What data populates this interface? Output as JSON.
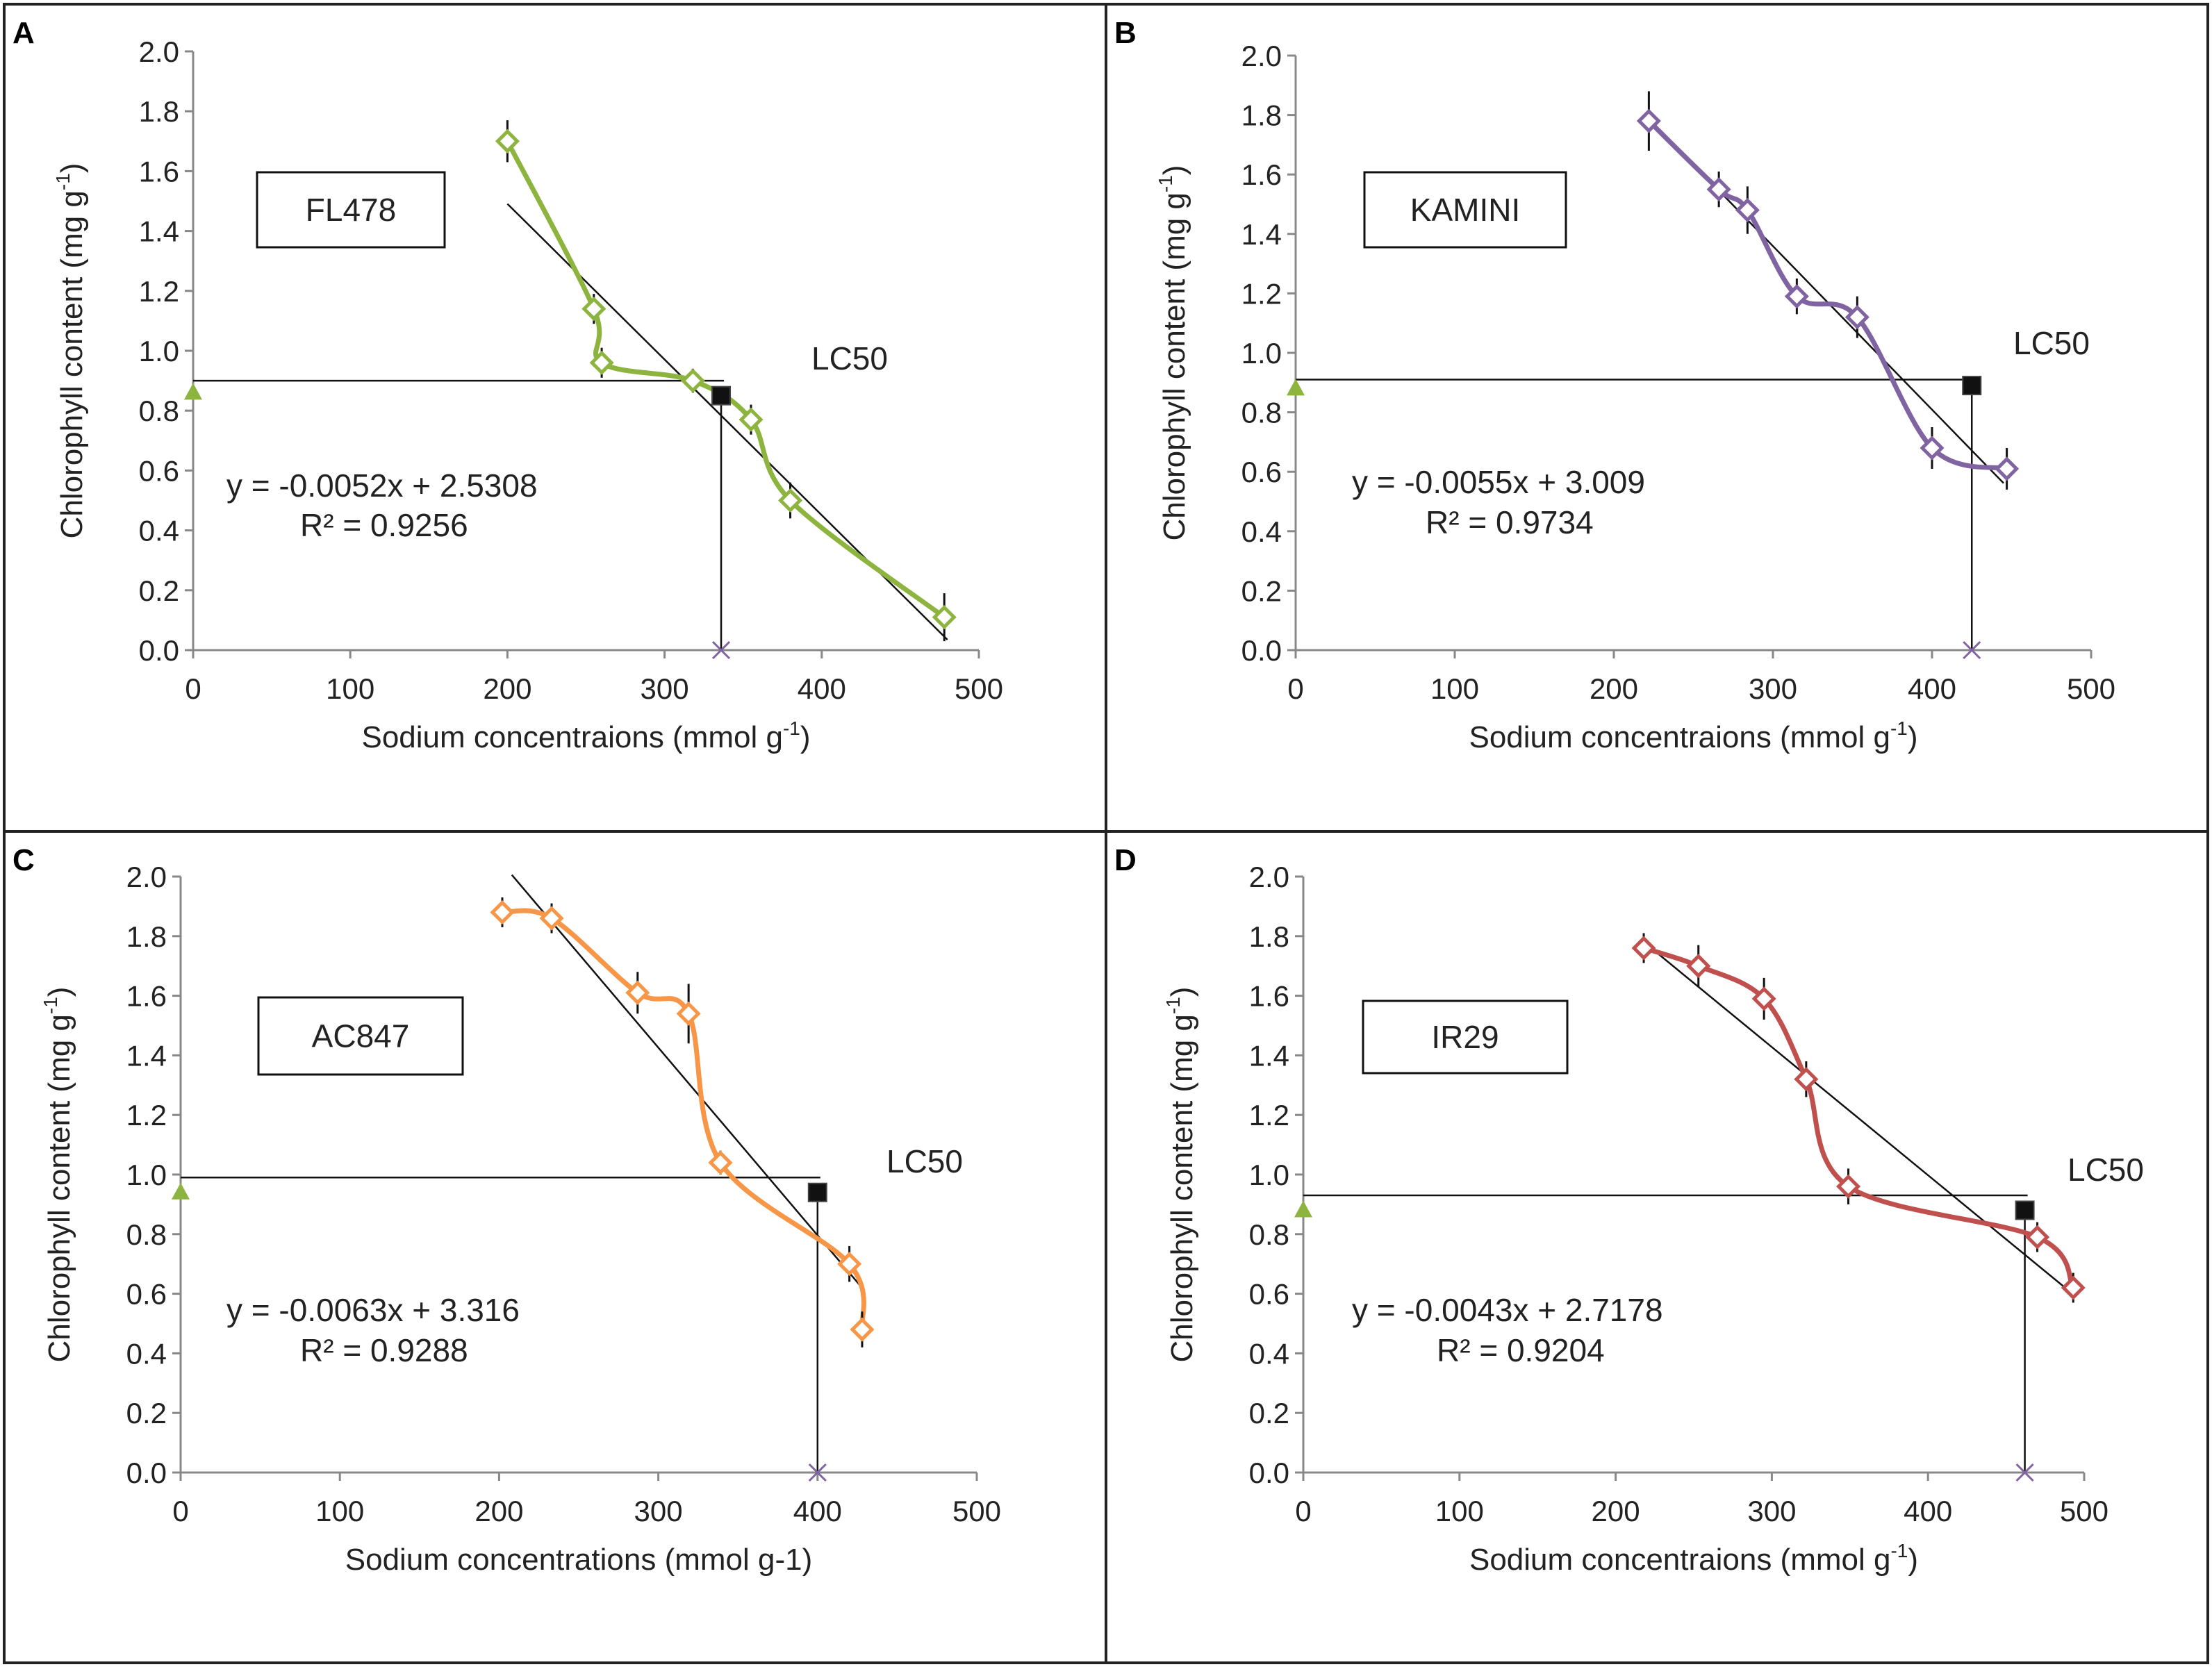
{
  "chart_data": [
    {
      "panel_label": "A",
      "type": "line",
      "cultivar": "FL478",
      "xlabel": "Sodium concentraions (mmol g",
      "xlabel_sup": "-1",
      "xlabel_end": ")",
      "ylabel": "Chlorophyll content (mg g",
      "ylabel_sup": "-1",
      "ylabel_end": ")",
      "xlim": [
        0,
        500
      ],
      "ylim": [
        0,
        2
      ],
      "xticks": [
        "0",
        "100",
        "200",
        "300",
        "400",
        "500"
      ],
      "yticks": [
        "0.0",
        "0.2",
        "0.4",
        "0.6",
        "0.8",
        "1.0",
        "1.2",
        "1.4",
        "1.6",
        "1.8",
        "2.0"
      ],
      "series_color": "#8DB43E",
      "x": [
        200,
        255,
        260,
        318,
        355,
        380,
        478
      ],
      "y": [
        1.7,
        1.14,
        0.96,
        0.9,
        0.77,
        0.5,
        0.11
      ],
      "err": [
        0.07,
        0.05,
        0.05,
        0.04,
        0.05,
        0.06,
        0.08
      ],
      "trend_x": [
        200,
        480
      ],
      "equation": "y = -0.0052x + 2.5308",
      "r2": "R² = 0.9256",
      "lc50_label": "LC50",
      "lc50_x": 336,
      "lc50_y": 0.85,
      "lc50_line_y": 0.9,
      "axis_marker_y": 0.86
    },
    {
      "panel_label": "B",
      "type": "line",
      "cultivar": "KAMINI",
      "xlabel": "Sodium concentraions (mmol g",
      "xlabel_sup": "-1",
      "xlabel_end": ")",
      "ylabel": "Chlorophyll content (mg g",
      "ylabel_sup": "-1",
      "ylabel_end": ")",
      "xlim": [
        0,
        500
      ],
      "ylim": [
        0,
        2
      ],
      "xticks": [
        "0",
        "100",
        "200",
        "300",
        "400",
        "500"
      ],
      "yticks": [
        "0.0",
        "0.2",
        "0.4",
        "0.6",
        "0.8",
        "1.0",
        "1.2",
        "1.4",
        "1.6",
        "1.8",
        "2.0"
      ],
      "series_color": "#8064A2",
      "x": [
        222,
        266,
        284,
        315,
        353,
        400,
        447
      ],
      "y": [
        1.78,
        1.55,
        1.48,
        1.19,
        1.12,
        0.68,
        0.61
      ],
      "err": [
        0.1,
        0.06,
        0.08,
        0.06,
        0.07,
        0.07,
        0.07
      ],
      "trend_x": [
        220,
        445
      ],
      "equation": "y = -0.0055x + 3.009",
      "r2": "R² = 0.9734",
      "lc50_label": "LC50",
      "lc50_x": 425,
      "lc50_y": 0.89,
      "lc50_line_y": 0.91,
      "axis_marker_y": 0.88
    },
    {
      "panel_label": "C",
      "type": "line",
      "cultivar": "AC847",
      "xlabel": "Sodium concentrations",
      "xlabel_sup": "",
      "xlabel_end": " (mmol g-1)",
      "ylabel": "Chlorophyll content (mg g",
      "ylabel_sup": "-1",
      "ylabel_end": ")",
      "xlim": [
        0,
        500
      ],
      "ylim": [
        0,
        2
      ],
      "xticks": [
        "0",
        "100",
        "200",
        "300",
        "400",
        "500"
      ],
      "yticks": [
        "0.0",
        "0.2",
        "0.4",
        "0.6",
        "0.8",
        "1.0",
        "1.2",
        "1.4",
        "1.6",
        "1.8",
        "2.0"
      ],
      "series_color": "#F79646",
      "x": [
        202,
        233,
        287,
        319,
        339,
        420,
        428
      ],
      "y": [
        1.88,
        1.86,
        1.61,
        1.54,
        1.04,
        0.7,
        0.48
      ],
      "err": [
        0.05,
        0.05,
        0.07,
        0.1,
        0.04,
        0.06,
        0.06
      ],
      "trend_x": [
        208,
        428
      ],
      "equation": "y = -0.0063x + 3.316",
      "r2": "R² = 0.9288",
      "lc50_label": "LC50",
      "lc50_x": 400,
      "lc50_y": 0.94,
      "lc50_line_y": 0.99,
      "axis_marker_y": 0.94
    },
    {
      "panel_label": "D",
      "type": "line",
      "cultivar": "IR29",
      "xlabel": "Sodium concentraions (mmol g",
      "xlabel_sup": "-1",
      "xlabel_end": ")",
      "ylabel": "Chlorophyll content (mg g",
      "ylabel_sup": "-1",
      "ylabel_end": ")",
      "xlim": [
        0,
        500
      ],
      "ylim": [
        0,
        2
      ],
      "xticks": [
        "0",
        "100",
        "200",
        "300",
        "400",
        "500"
      ],
      "yticks": [
        "0.0",
        "0.2",
        "0.4",
        "0.6",
        "0.8",
        "1.0",
        "1.2",
        "1.4",
        "1.6",
        "1.8",
        "2.0"
      ],
      "series_color": "#C0504D",
      "x": [
        218,
        253,
        295,
        322,
        349,
        470,
        493
      ],
      "y": [
        1.76,
        1.7,
        1.59,
        1.32,
        0.96,
        0.79,
        0.62
      ],
      "err": [
        0.05,
        0.07,
        0.07,
        0.06,
        0.06,
        0.05,
        0.05
      ],
      "trend_x": [
        218,
        493
      ],
      "equation": "y = -0.0043x + 2.7178",
      "r2": "R² = 0.9204",
      "lc50_label": "LC50",
      "lc50_x": 462,
      "lc50_y": 0.88,
      "lc50_line_y": 0.93,
      "axis_marker_y": 0.88
    }
  ]
}
